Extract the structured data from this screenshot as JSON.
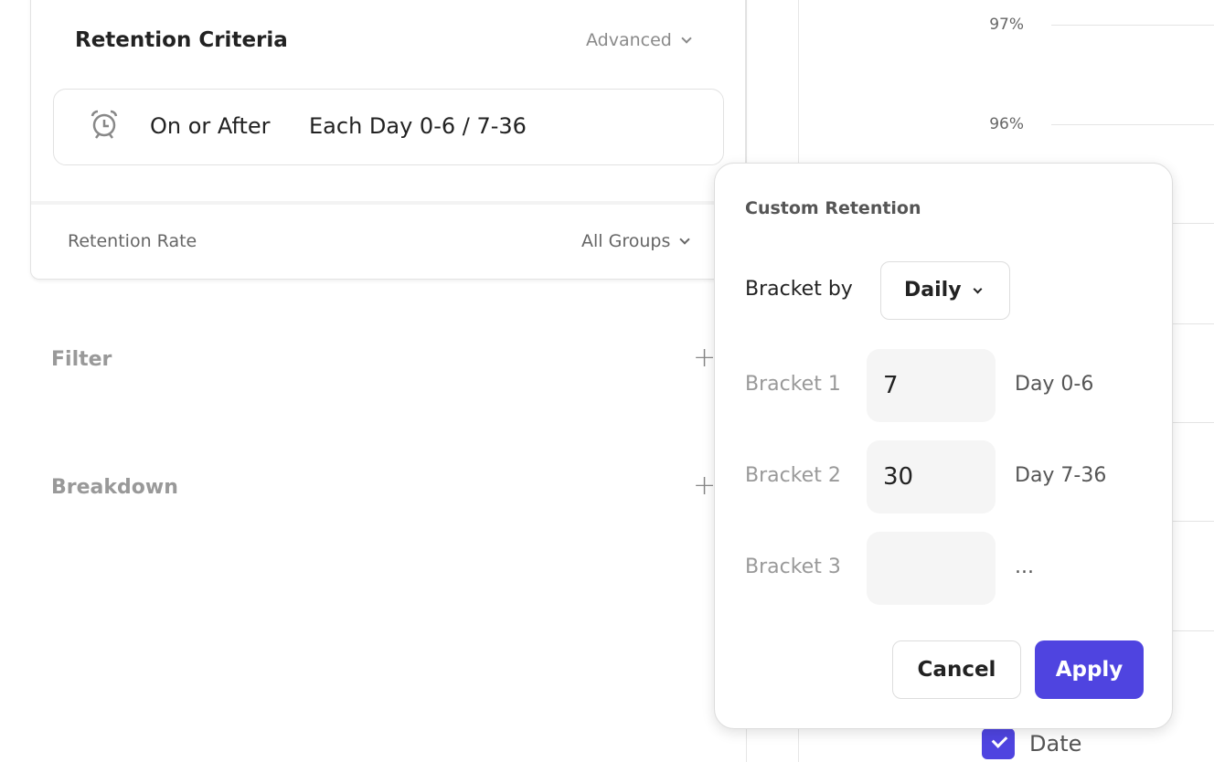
{
  "chart": {
    "y_ticks": [
      "97%",
      "96%"
    ]
  },
  "criteria": {
    "title": "Retention Criteria",
    "advanced": "Advanced",
    "icon": "alarm-clock-icon",
    "mode": "On or After",
    "brackets": "Each Day 0-6 / 7-36"
  },
  "rate": {
    "label": "Retention Rate",
    "groups": "All Groups"
  },
  "sections": {
    "filter": "Filter",
    "breakdown": "Breakdown"
  },
  "popup": {
    "title": "Custom Retention",
    "bracket_by_label": "Bracket by",
    "bracket_by_value": "Daily",
    "brackets": [
      {
        "label": "Bracket 1",
        "value": "7",
        "range": "Day 0-6"
      },
      {
        "label": "Bracket 2",
        "value": "30",
        "range": "Day 7-36"
      },
      {
        "label": "Bracket 3",
        "value": "",
        "range": "..."
      }
    ],
    "cancel": "Cancel",
    "apply": "Apply"
  },
  "legend": {
    "date": "Date",
    "checked": true
  },
  "colors": {
    "accent": "#4f44e0"
  }
}
